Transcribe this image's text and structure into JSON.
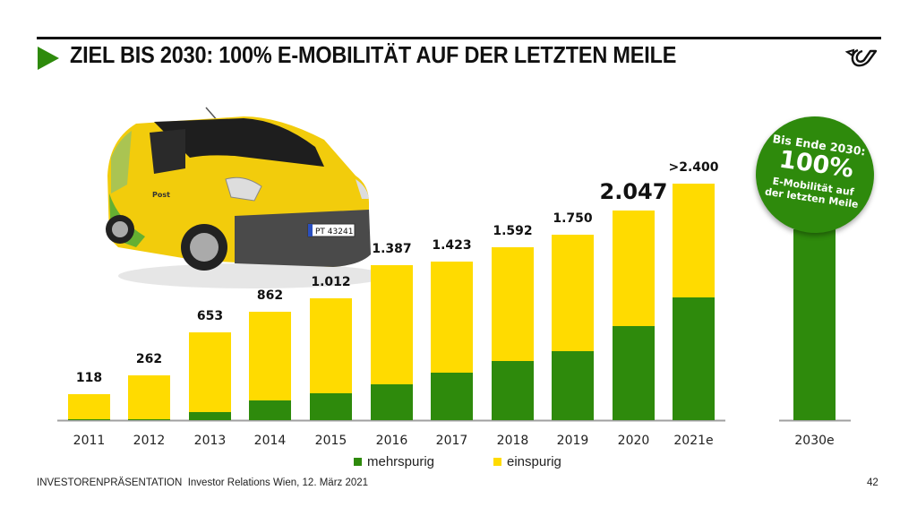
{
  "slide": {
    "title": "ZIEL BIS 2030: 100% E-MOBILITÄT AUF DER LETZTEN MEILE",
    "footer_label": "INVESTORENPRÄSENTATION",
    "footer_text": "Investor Relations Wien, 12. März 2021",
    "page_number": "42",
    "van_plate": "PT 43241",
    "van_brand": "Post"
  },
  "badge": {
    "line1": "Bis Ende 2030:",
    "line2": "100%",
    "line3a": "E-Mobilität auf",
    "line3b": "der letzten Meile"
  },
  "colors": {
    "mehrspurig": "#2e8a0c",
    "einspurig": "#ffdb00",
    "accent": "#2e8a0c",
    "axis": "#a0a0a0"
  },
  "chart_data": {
    "type": "bar",
    "stacked": true,
    "title": "ZIEL BIS 2030: 100% E-MOBILITÄT AUF DER LETZTEN MEILE",
    "xlabel": "",
    "ylabel": "",
    "categories": [
      "2011",
      "2012",
      "2013",
      "2014",
      "2015",
      "2016",
      "2017",
      "2018",
      "2019",
      "2020",
      "2021e",
      "2030e"
    ],
    "totals": [
      118,
      262,
      653,
      862,
      1012,
      1387,
      1423,
      1592,
      1750,
      2047,
      2400,
      null
    ],
    "total_labels": [
      "118",
      "262",
      "653",
      "862",
      "1.012",
      "1.387",
      "1.423",
      "1.592",
      "1.750",
      "2.047",
      ">2.400",
      ""
    ],
    "mehrspurig_share_estimated": [
      0.01,
      0.005,
      0.095,
      0.18,
      0.22,
      0.23,
      0.3,
      0.34,
      0.37,
      0.45,
      0.52,
      1.0
    ],
    "series": [
      {
        "name": "mehrspurig",
        "color": "#2e8a0c"
      },
      {
        "name": "einspurig",
        "color": "#ffdb00"
      }
    ],
    "legend_position": "bottom",
    "grid": false,
    "note": "2030e: target 100% e-mobility (fully mehrspurig bar, annotated by badge); bars not drawn strictly to scale"
  }
}
